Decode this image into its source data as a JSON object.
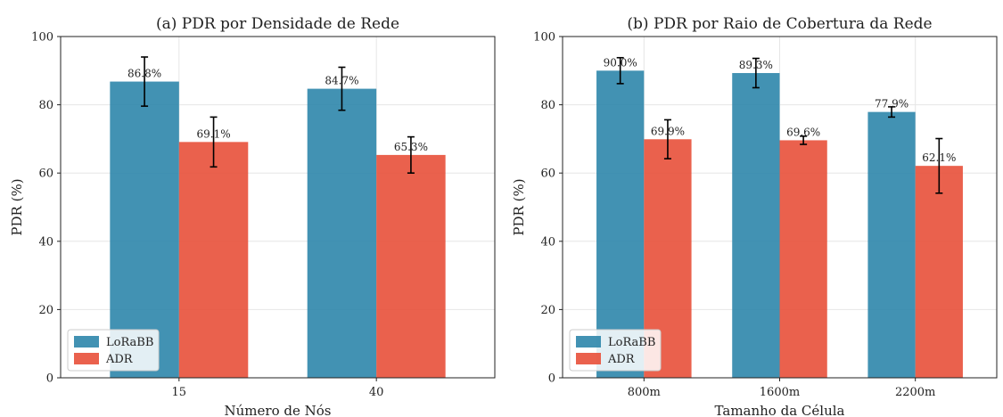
{
  "chart_data": [
    {
      "type": "bar",
      "title": "(a) PDR por Densidade de Rede",
      "xlabel": "Número de Nós",
      "ylabel": "PDR (%)",
      "ylim": [
        0,
        100
      ],
      "yticks": [
        0,
        20,
        40,
        60,
        80,
        100
      ],
      "categories": [
        "15",
        "40"
      ],
      "grid": true,
      "legend_position": "lower-left",
      "series": [
        {
          "name": "LoRaBB",
          "color": "#2e86ab",
          "values": [
            86.8,
            84.7
          ],
          "errors": [
            7.2,
            6.3
          ],
          "labels": [
            "86.8%",
            "84.7%"
          ]
        },
        {
          "name": "ADR",
          "color": "#e8503a",
          "values": [
            69.1,
            65.3
          ],
          "errors": [
            7.3,
            5.3
          ],
          "labels": [
            "69.1%",
            "65.3%"
          ]
        }
      ]
    },
    {
      "type": "bar",
      "title": "(b) PDR por Raio de Cobertura da Rede",
      "xlabel": "Tamanho da Célula",
      "ylabel": "PDR (%)",
      "ylim": [
        0,
        100
      ],
      "yticks": [
        0,
        20,
        40,
        60,
        80,
        100
      ],
      "categories": [
        "800m",
        "1600m",
        "2200m"
      ],
      "grid": true,
      "legend_position": "lower-left",
      "series": [
        {
          "name": "LoRaBB",
          "color": "#2e86ab",
          "values": [
            90.0,
            89.3,
            77.9
          ],
          "errors": [
            3.8,
            4.3,
            1.5
          ],
          "labels": [
            "90.0%",
            "89.3%",
            "77.9%"
          ]
        },
        {
          "name": "ADR",
          "color": "#e8503a",
          "values": [
            69.9,
            69.6,
            62.1
          ],
          "errors": [
            5.7,
            1.2,
            8.0
          ],
          "labels": [
            "69.9%",
            "69.6%",
            "62.1%"
          ]
        }
      ]
    }
  ]
}
